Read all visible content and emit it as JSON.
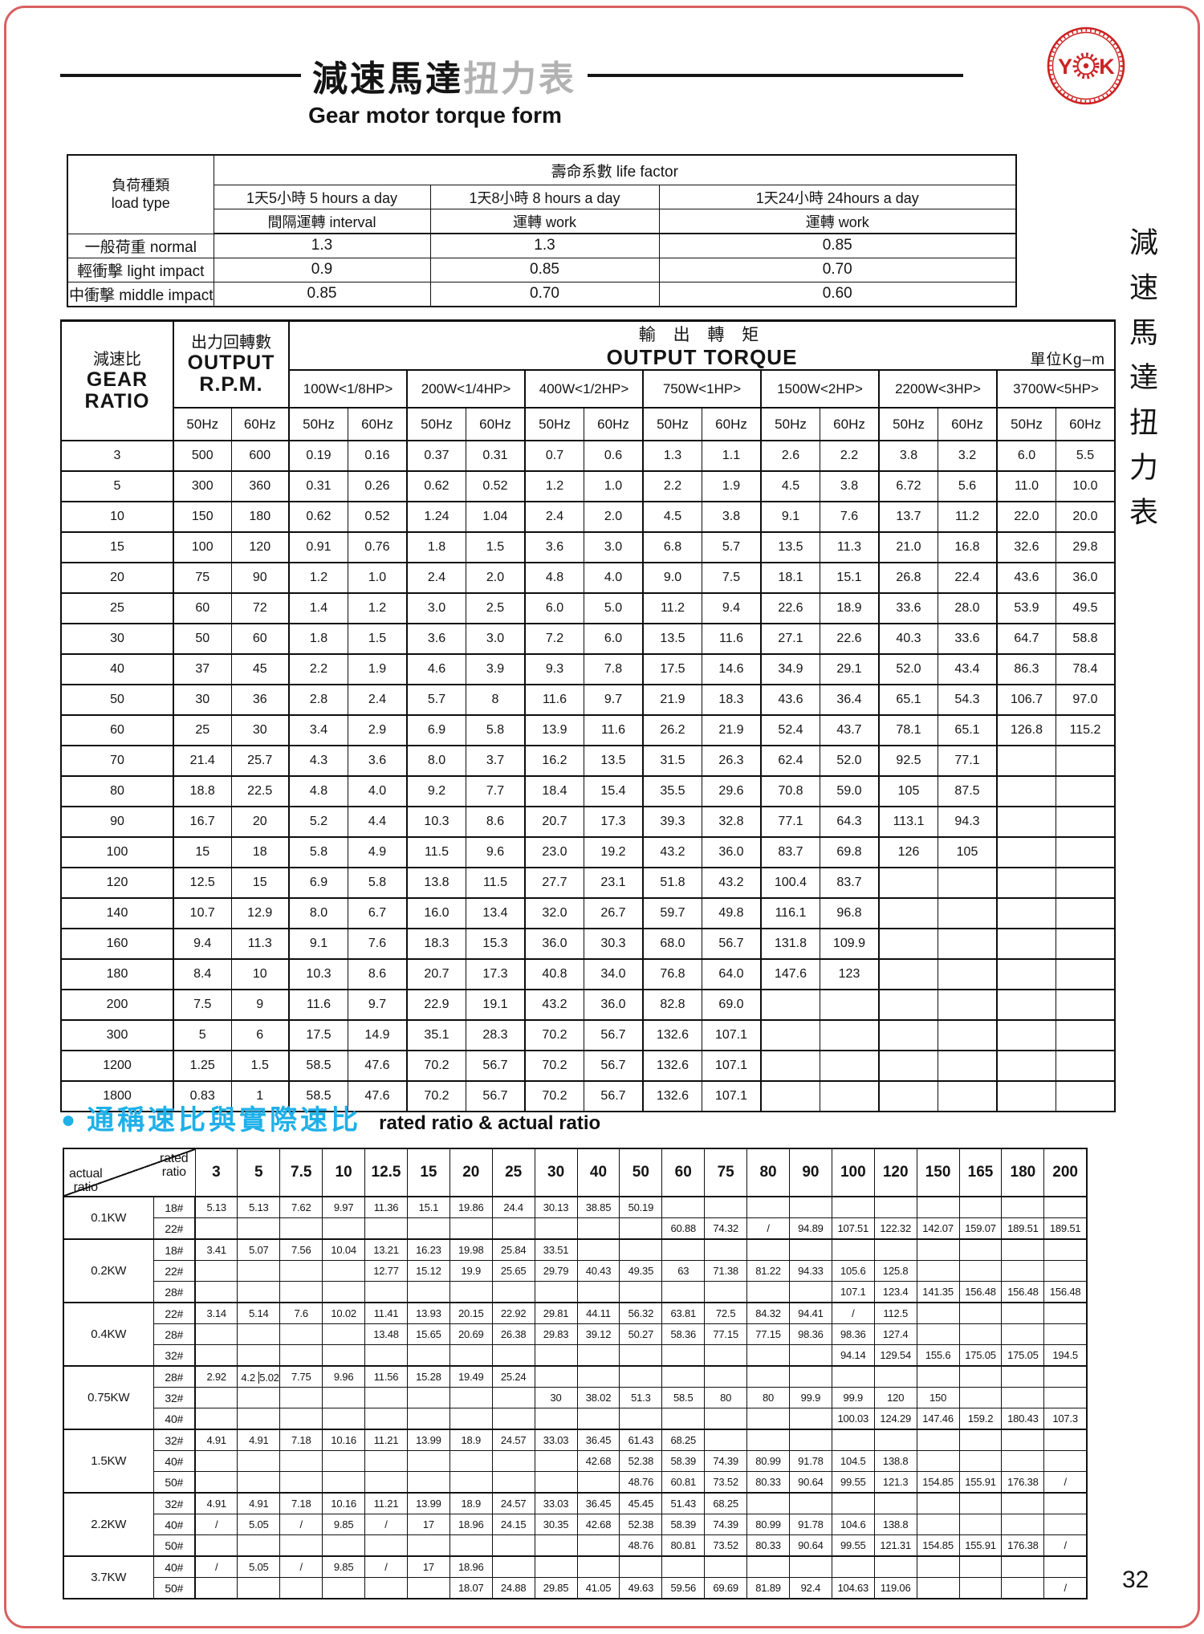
{
  "page": {
    "title_black": "減速馬達",
    "title_gray": "扭力表",
    "subtitle": "Gear motor torque form",
    "side_text": "減速馬達扭力表",
    "page_number": "32",
    "accent_red": "#cc2222",
    "accent_cyan": "#1fb0e8"
  },
  "logo": {
    "left_letter": "Y",
    "right_letter": "K"
  },
  "life_table": {
    "corner": {
      "zh": "負荷種類",
      "en": "load type"
    },
    "group_header": "壽命系數  life factor",
    "duty_headers": [
      "1天5小時 5 hours a day",
      "1天8小時 8 hours a day",
      "1天24小時 24hours a day"
    ],
    "mode_headers": [
      "間隔運轉 interval",
      "運轉 work",
      "運轉 work"
    ],
    "rows": [
      {
        "label": "一般荷重 normal",
        "values": [
          "1.3",
          "1.3",
          "0.85"
        ]
      },
      {
        "label": "輕衝擊 light impact",
        "values": [
          "0.9",
          "0.85",
          "0.70"
        ]
      },
      {
        "label": "中衝擊 middle impact",
        "values": [
          "0.85",
          "0.70",
          "0.60"
        ]
      }
    ]
  },
  "torque_table": {
    "ratio_header": {
      "zh": "減速比",
      "en1": "GEAR",
      "en2": "RATIO"
    },
    "rpm_header": {
      "zh": "出力回轉數",
      "en1": "OUTPUT",
      "en2": "R.P.M."
    },
    "torque_header": {
      "zh": "輸 出 轉 矩",
      "en": "OUTPUT TORQUE"
    },
    "unit": "單位Kg–m",
    "hz": [
      "50Hz",
      "60Hz"
    ],
    "powers": [
      "100W<1/8HP>",
      "200W<1/4HP>",
      "400W<1/2HP>",
      "750W<1HP>",
      "1500W<2HP>",
      "2200W<3HP>",
      "3700W<5HP>"
    ],
    "rows": [
      [
        "3",
        "500",
        "600",
        "0.19",
        "0.16",
        "0.37",
        "0.31",
        "0.7",
        "0.6",
        "1.3",
        "1.1",
        "2.6",
        "2.2",
        "3.8",
        "3.2",
        "6.0",
        "5.5"
      ],
      [
        "5",
        "300",
        "360",
        "0.31",
        "0.26",
        "0.62",
        "0.52",
        "1.2",
        "1.0",
        "2.2",
        "1.9",
        "4.5",
        "3.8",
        "6.72",
        "5.6",
        "11.0",
        "10.0"
      ],
      [
        "10",
        "150",
        "180",
        "0.62",
        "0.52",
        "1.24",
        "1.04",
        "2.4",
        "2.0",
        "4.5",
        "3.8",
        "9.1",
        "7.6",
        "13.7",
        "11.2",
        "22.0",
        "20.0"
      ],
      [
        "15",
        "100",
        "120",
        "0.91",
        "0.76",
        "1.8",
        "1.5",
        "3.6",
        "3.0",
        "6.8",
        "5.7",
        "13.5",
        "11.3",
        "21.0",
        "16.8",
        "32.6",
        "29.8"
      ],
      [
        "20",
        "75",
        "90",
        "1.2",
        "1.0",
        "2.4",
        "2.0",
        "4.8",
        "4.0",
        "9.0",
        "7.5",
        "18.1",
        "15.1",
        "26.8",
        "22.4",
        "43.6",
        "36.0"
      ],
      [
        "25",
        "60",
        "72",
        "1.4",
        "1.2",
        "3.0",
        "2.5",
        "6.0",
        "5.0",
        "11.2",
        "9.4",
        "22.6",
        "18.9",
        "33.6",
        "28.0",
        "53.9",
        "49.5"
      ],
      [
        "30",
        "50",
        "60",
        "1.8",
        "1.5",
        "3.6",
        "3.0",
        "7.2",
        "6.0",
        "13.5",
        "11.6",
        "27.1",
        "22.6",
        "40.3",
        "33.6",
        "64.7",
        "58.8"
      ],
      [
        "40",
        "37",
        "45",
        "2.2",
        "1.9",
        "4.6",
        "3.9",
        "9.3",
        "7.8",
        "17.5",
        "14.6",
        "34.9",
        "29.1",
        "52.0",
        "43.4",
        "86.3",
        "78.4"
      ],
      [
        "50",
        "30",
        "36",
        "2.8",
        "2.4",
        "5.7",
        "8",
        "11.6",
        "9.7",
        "21.9",
        "18.3",
        "43.6",
        "36.4",
        "65.1",
        "54.3",
        "106.7",
        "97.0"
      ],
      [
        "60",
        "25",
        "30",
        "3.4",
        "2.9",
        "6.9",
        "5.8",
        "13.9",
        "11.6",
        "26.2",
        "21.9",
        "52.4",
        "43.7",
        "78.1",
        "65.1",
        "126.8",
        "115.2"
      ],
      [
        "70",
        "21.4",
        "25.7",
        "4.3",
        "3.6",
        "8.0",
        "3.7",
        "16.2",
        "13.5",
        "31.5",
        "26.3",
        "62.4",
        "52.0",
        "92.5",
        "77.1",
        "",
        ""
      ],
      [
        "80",
        "18.8",
        "22.5",
        "4.8",
        "4.0",
        "9.2",
        "7.7",
        "18.4",
        "15.4",
        "35.5",
        "29.6",
        "70.8",
        "59.0",
        "105",
        "87.5",
        "",
        ""
      ],
      [
        "90",
        "16.7",
        "20",
        "5.2",
        "4.4",
        "10.3",
        "8.6",
        "20.7",
        "17.3",
        "39.3",
        "32.8",
        "77.1",
        "64.3",
        "113.1",
        "94.3",
        "",
        ""
      ],
      [
        "100",
        "15",
        "18",
        "5.8",
        "4.9",
        "11.5",
        "9.6",
        "23.0",
        "19.2",
        "43.2",
        "36.0",
        "83.7",
        "69.8",
        "126",
        "105",
        "",
        ""
      ],
      [
        "120",
        "12.5",
        "15",
        "6.9",
        "5.8",
        "13.8",
        "11.5",
        "27.7",
        "23.1",
        "51.8",
        "43.2",
        "100.4",
        "83.7",
        "",
        "",
        "",
        ""
      ],
      [
        "140",
        "10.7",
        "12.9",
        "8.0",
        "6.7",
        "16.0",
        "13.4",
        "32.0",
        "26.7",
        "59.7",
        "49.8",
        "116.1",
        "96.8",
        "",
        "",
        "",
        ""
      ],
      [
        "160",
        "9.4",
        "11.3",
        "9.1",
        "7.6",
        "18.3",
        "15.3",
        "36.0",
        "30.3",
        "68.0",
        "56.7",
        "131.8",
        "109.9",
        "",
        "",
        "",
        ""
      ],
      [
        "180",
        "8.4",
        "10",
        "10.3",
        "8.6",
        "20.7",
        "17.3",
        "40.8",
        "34.0",
        "76.8",
        "64.0",
        "147.6",
        "123",
        "",
        "",
        "",
        ""
      ],
      [
        "200",
        "7.5",
        "9",
        "11.6",
        "9.7",
        "22.9",
        "19.1",
        "43.2",
        "36.0",
        "82.8",
        "69.0",
        "",
        "",
        "",
        "",
        "",
        ""
      ],
      [
        "300",
        "5",
        "6",
        "17.5",
        "14.9",
        "35.1",
        "28.3",
        "70.2",
        "56.7",
        "132.6",
        "107.1",
        "",
        "",
        "",
        "",
        "",
        ""
      ],
      [
        "1200",
        "1.25",
        "1.5",
        "58.5",
        "47.6",
        "70.2",
        "56.7",
        "70.2",
        "56.7",
        "132.6",
        "107.1",
        "",
        "",
        "",
        "",
        "",
        ""
      ],
      [
        "1800",
        "0.83",
        "1",
        "58.5",
        "47.6",
        "70.2",
        "56.7",
        "70.2",
        "56.7",
        "132.6",
        "107.1",
        "",
        "",
        "",
        "",
        "",
        ""
      ]
    ]
  },
  "ratio_table": {
    "title_zh": "通稱速比與實際速比",
    "title_en": "rated ratio  &   actual ratio",
    "diag": {
      "top1": "rated",
      "top2": "ratio",
      "bottom1": "actual",
      "bottom2": "ratio"
    },
    "columns": [
      "3",
      "5",
      "7.5",
      "10",
      "12.5",
      "15",
      "20",
      "25",
      "30",
      "40",
      "50",
      "60",
      "75",
      "80",
      "90",
      "100",
      "120",
      "150",
      "165",
      "180",
      "200"
    ],
    "groups": [
      {
        "power": "0.1KW",
        "rows": [
          {
            "frame": "18#",
            "values": [
              "5.13",
              "5.13",
              "7.62",
              "9.97",
              "11.36",
              "15.1",
              "19.86",
              "24.4",
              "30.13",
              "38.85",
              "50.19",
              "",
              "",
              "",
              "",
              "",
              "",
              "",
              "",
              "",
              ""
            ]
          },
          {
            "frame": "22#",
            "values": [
              "",
              "",
              "",
              "",
              "",
              "",
              "",
              "",
              "",
              "",
              "",
              "60.88",
              "74.32",
              "/",
              "94.89",
              "107.51",
              "122.32",
              "142.07",
              "159.07",
              "189.51",
              "189.51"
            ]
          }
        ]
      },
      {
        "power": "0.2KW",
        "rows": [
          {
            "frame": "18#",
            "values": [
              "3.41",
              "5.07",
              "7.56",
              "10.04",
              "13.21",
              "16.23",
              "19.98",
              "25.84",
              "33.51",
              "",
              "",
              "",
              "",
              "",
              "",
              "",
              "",
              "",
              "",
              "",
              ""
            ]
          },
          {
            "frame": "22#",
            "values": [
              "",
              "",
              "",
              "",
              "12.77",
              "15.12",
              "19.9",
              "25.65",
              "29.79",
              "40.43",
              "49.35",
              "63",
              "71.38",
              "81.22",
              "94.33",
              "105.6",
              "125.8",
              "",
              "",
              "",
              ""
            ]
          },
          {
            "frame": "28#",
            "values": [
              "",
              "",
              "",
              "",
              "",
              "",
              "",
              "",
              "",
              "",
              "",
              "",
              "",
              "",
              "",
              "107.1",
              "123.4",
              "141.35",
              "156.48",
              "156.48",
              "156.48"
            ]
          }
        ]
      },
      {
        "power": "0.4KW",
        "rows": [
          {
            "frame": "22#",
            "values": [
              "3.14",
              "5.14",
              "7.6",
              "10.02",
              "11.41",
              "13.93",
              "20.15",
              "22.92",
              "29.81",
              "44.11",
              "56.32",
              "63.81",
              "72.5",
              "84.32",
              "94.41",
              "/",
              "112.5",
              "",
              "",
              "",
              ""
            ]
          },
          {
            "frame": "28#",
            "values": [
              "",
              "",
              "",
              "",
              "13.48",
              "15.65",
              "20.69",
              "26.38",
              "29.83",
              "39.12",
              "50.27",
              "58.36",
              "77.15",
              "77.15",
              "98.36",
              "98.36",
              "127.4",
              "",
              "",
              "",
              ""
            ]
          },
          {
            "frame": "32#",
            "values": [
              "",
              "",
              "",
              "",
              "",
              "",
              "",
              "",
              "",
              "",
              "",
              "",
              "",
              "",
              "",
              "94.14",
              "129.54",
              "155.6",
              "175.05",
              "175.05",
              "194.5"
            ]
          }
        ]
      },
      {
        "power": "0.75KW",
        "rows": [
          {
            "frame": "28#",
            "values": [
              "2.92",
              "4.2|5.02",
              "7.75",
              "9.96",
              "11.56",
              "15.28",
              "19.49",
              "25.24",
              "",
              "",
              "",
              "",
              "",
              "",
              "",
              "",
              "",
              "",
              "",
              "",
              ""
            ]
          },
          {
            "frame": "32#",
            "values": [
              "",
              "",
              "",
              "",
              "",
              "",
              "",
              "",
              "30",
              "38.02",
              "51.3",
              "58.5",
              "80",
              "80",
              "99.9",
              "99.9",
              "120",
              "150",
              "",
              "",
              ""
            ]
          },
          {
            "frame": "40#",
            "values": [
              "",
              "",
              "",
              "",
              "",
              "",
              "",
              "",
              "",
              "",
              "",
              "",
              "",
              "",
              "",
              "100.03",
              "124.29",
              "147.46",
              "159.2",
              "180.43",
              "107.3"
            ]
          }
        ]
      },
      {
        "power": "1.5KW",
        "rows": [
          {
            "frame": "32#",
            "values": [
              "4.91",
              "4.91",
              "7.18",
              "10.16",
              "11.21",
              "13.99",
              "18.9",
              "24.57",
              "33.03",
              "36.45",
              "61.43",
              "68.25",
              "",
              "",
              "",
              "",
              "",
              "",
              "",
              "",
              ""
            ]
          },
          {
            "frame": "40#",
            "values": [
              "",
              "",
              "",
              "",
              "",
              "",
              "",
              "",
              "",
              "42.68",
              "52.38",
              "58.39",
              "74.39",
              "80.99",
              "91.78",
              "104.5",
              "138.8",
              "",
              "",
              "",
              ""
            ]
          },
          {
            "frame": "50#",
            "values": [
              "",
              "",
              "",
              "",
              "",
              "",
              "",
              "",
              "",
              "",
              "48.76",
              "60.81",
              "73.52",
              "80.33",
              "90.64",
              "99.55",
              "121.3",
              "154.85",
              "155.91",
              "176.38",
              "/"
            ]
          }
        ]
      },
      {
        "power": "2.2KW",
        "rows": [
          {
            "frame": "32#",
            "values": [
              "4.91",
              "4.91",
              "7.18",
              "10.16",
              "11.21",
              "13.99",
              "18.9",
              "24.57",
              "33.03",
              "36.45",
              "45.45",
              "51.43",
              "68.25",
              "",
              "",
              "",
              "",
              "",
              "",
              "",
              ""
            ]
          },
          {
            "frame": "40#",
            "values": [
              "/",
              "5.05",
              "/",
              "9.85",
              "/",
              "17",
              "18.96",
              "24.15",
              "30.35",
              "42.68",
              "52.38",
              "58.39",
              "74.39",
              "80.99",
              "91.78",
              "104.6",
              "138.8",
              "",
              "",
              "",
              ""
            ]
          },
          {
            "frame": "50#",
            "values": [
              "",
              "",
              "",
              "",
              "",
              "",
              "",
              "",
              "",
              "",
              "48.76",
              "80.81",
              "73.52",
              "80.33",
              "90.64",
              "99.55",
              "121.31",
              "154.85",
              "155.91",
              "176.38",
              "/"
            ]
          }
        ]
      },
      {
        "power": "3.7KW",
        "rows": [
          {
            "frame": "40#",
            "values": [
              "/",
              "5.05",
              "/",
              "9.85",
              "/",
              "17",
              "18.96",
              "",
              "",
              "",
              "",
              "",
              "",
              "",
              "",
              "",
              "",
              "",
              "",
              "",
              ""
            ]
          },
          {
            "frame": "50#",
            "values": [
              "",
              "",
              "",
              "",
              "",
              "",
              "18.07",
              "24.88",
              "29.85",
              "41.05",
              "49.63",
              "59.56",
              "69.69",
              "81.89",
              "92.4",
              "104.63",
              "119.06",
              "",
              "",
              "",
              "/"
            ]
          }
        ]
      }
    ]
  }
}
